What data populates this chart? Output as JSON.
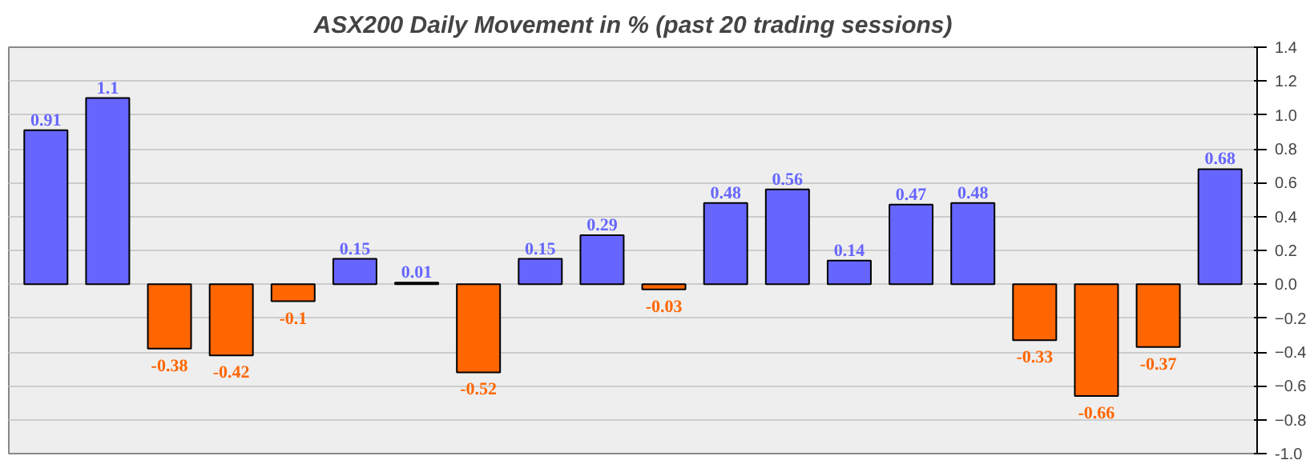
{
  "chart_data": {
    "type": "bar",
    "title": "ASX200 Daily Movement in % (past 20 trading sessions)",
    "categories": [
      null,
      null,
      null,
      null,
      null,
      null,
      null,
      null,
      null,
      null,
      null,
      null,
      null,
      null,
      null,
      null,
      null,
      null,
      null,
      null
    ],
    "values": [
      0.91,
      1.1,
      -0.38,
      -0.42,
      -0.1,
      0.15,
      0.01,
      -0.52,
      0.15,
      0.29,
      -0.03,
      0.48,
      0.56,
      0.14,
      0.47,
      0.48,
      -0.33,
      -0.66,
      -0.37,
      0.68
    ],
    "colors": [
      "#6666ff",
      "#6666ff",
      "#ff6600",
      "#ff6600",
      "#ff6600",
      "#6666ff",
      "#6666ff",
      "#ff6600",
      "#6666ff",
      "#6666ff",
      "#ff6600",
      "#6666ff",
      "#6666ff",
      "#6666ff",
      "#6666ff",
      "#6666ff",
      "#ff6600",
      "#ff6600",
      "#ff6600",
      "#6666ff"
    ],
    "data_labels": true,
    "grid": "y",
    "ylim": [
      -1.0,
      1.4
    ],
    "yticks": [
      {
        "value": -1.0,
        "label": "-1.0"
      },
      -0.8,
      -0.6,
      -0.4,
      -0.2,
      {
        "value": 0,
        "label": "0.0"
      },
      0.2,
      0.4,
      0.6,
      0.8,
      {
        "value": 1.0,
        "label": "1.0"
      },
      1.2,
      1.4
    ]
  }
}
